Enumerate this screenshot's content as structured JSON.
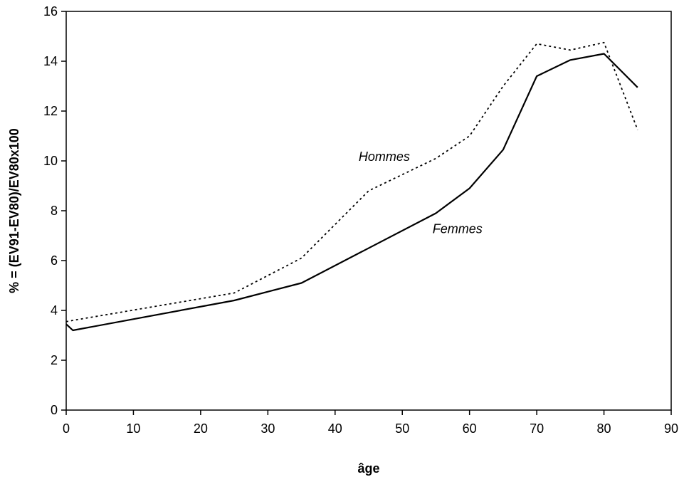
{
  "chart_data": {
    "type": "line",
    "title": "",
    "xlabel": "âge",
    "ylabel": "% = (EV91-EV80)/EV80x100",
    "xlim": [
      0,
      90
    ],
    "ylim": [
      0,
      16
    ],
    "x_ticks": [
      0,
      10,
      20,
      30,
      40,
      50,
      60,
      70,
      80,
      90
    ],
    "y_ticks": [
      0,
      2,
      4,
      6,
      8,
      10,
      12,
      14,
      16
    ],
    "grid": false,
    "legend": "none",
    "series": [
      {
        "name": "Hommes",
        "line_style": "dotted",
        "color": "#000000",
        "x": [
          0,
          1,
          25,
          35,
          45,
          55,
          60,
          65,
          70,
          75,
          80,
          85
        ],
        "y": [
          3.55,
          3.6,
          4.7,
          6.1,
          8.8,
          10.1,
          11.0,
          13.0,
          14.7,
          14.45,
          14.75,
          11.25
        ]
      },
      {
        "name": "Femmes",
        "line_style": "solid",
        "color": "#000000",
        "x": [
          0,
          1,
          25,
          35,
          55,
          60,
          65,
          70,
          75,
          80,
          85
        ],
        "y": [
          3.45,
          3.2,
          4.4,
          5.1,
          7.9,
          8.9,
          10.45,
          13.4,
          14.05,
          14.3,
          12.95
        ]
      }
    ],
    "annotations": [
      {
        "series": "Hommes",
        "text": "Hommes",
        "x": 43.5,
        "y": 10.0
      },
      {
        "series": "Femmes",
        "text": "Femmes",
        "x": 54.5,
        "y": 7.1
      }
    ]
  }
}
